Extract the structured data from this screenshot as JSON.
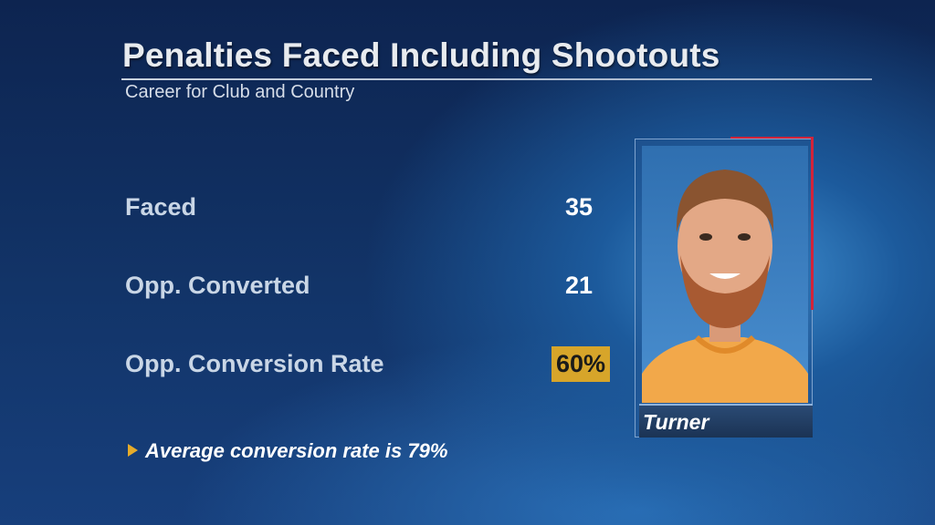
{
  "header": {
    "title": "Penalties Faced Including Shootouts",
    "subtitle": "Career for Club and Country"
  },
  "stats": [
    {
      "label": "Faced",
      "value": "35"
    },
    {
      "label": "Opp. Converted",
      "value": "21"
    },
    {
      "label": "Opp. Conversion Rate",
      "value": "60%"
    }
  ],
  "note": "Average conversion rate is 79%",
  "player": {
    "name": "Turner"
  }
}
